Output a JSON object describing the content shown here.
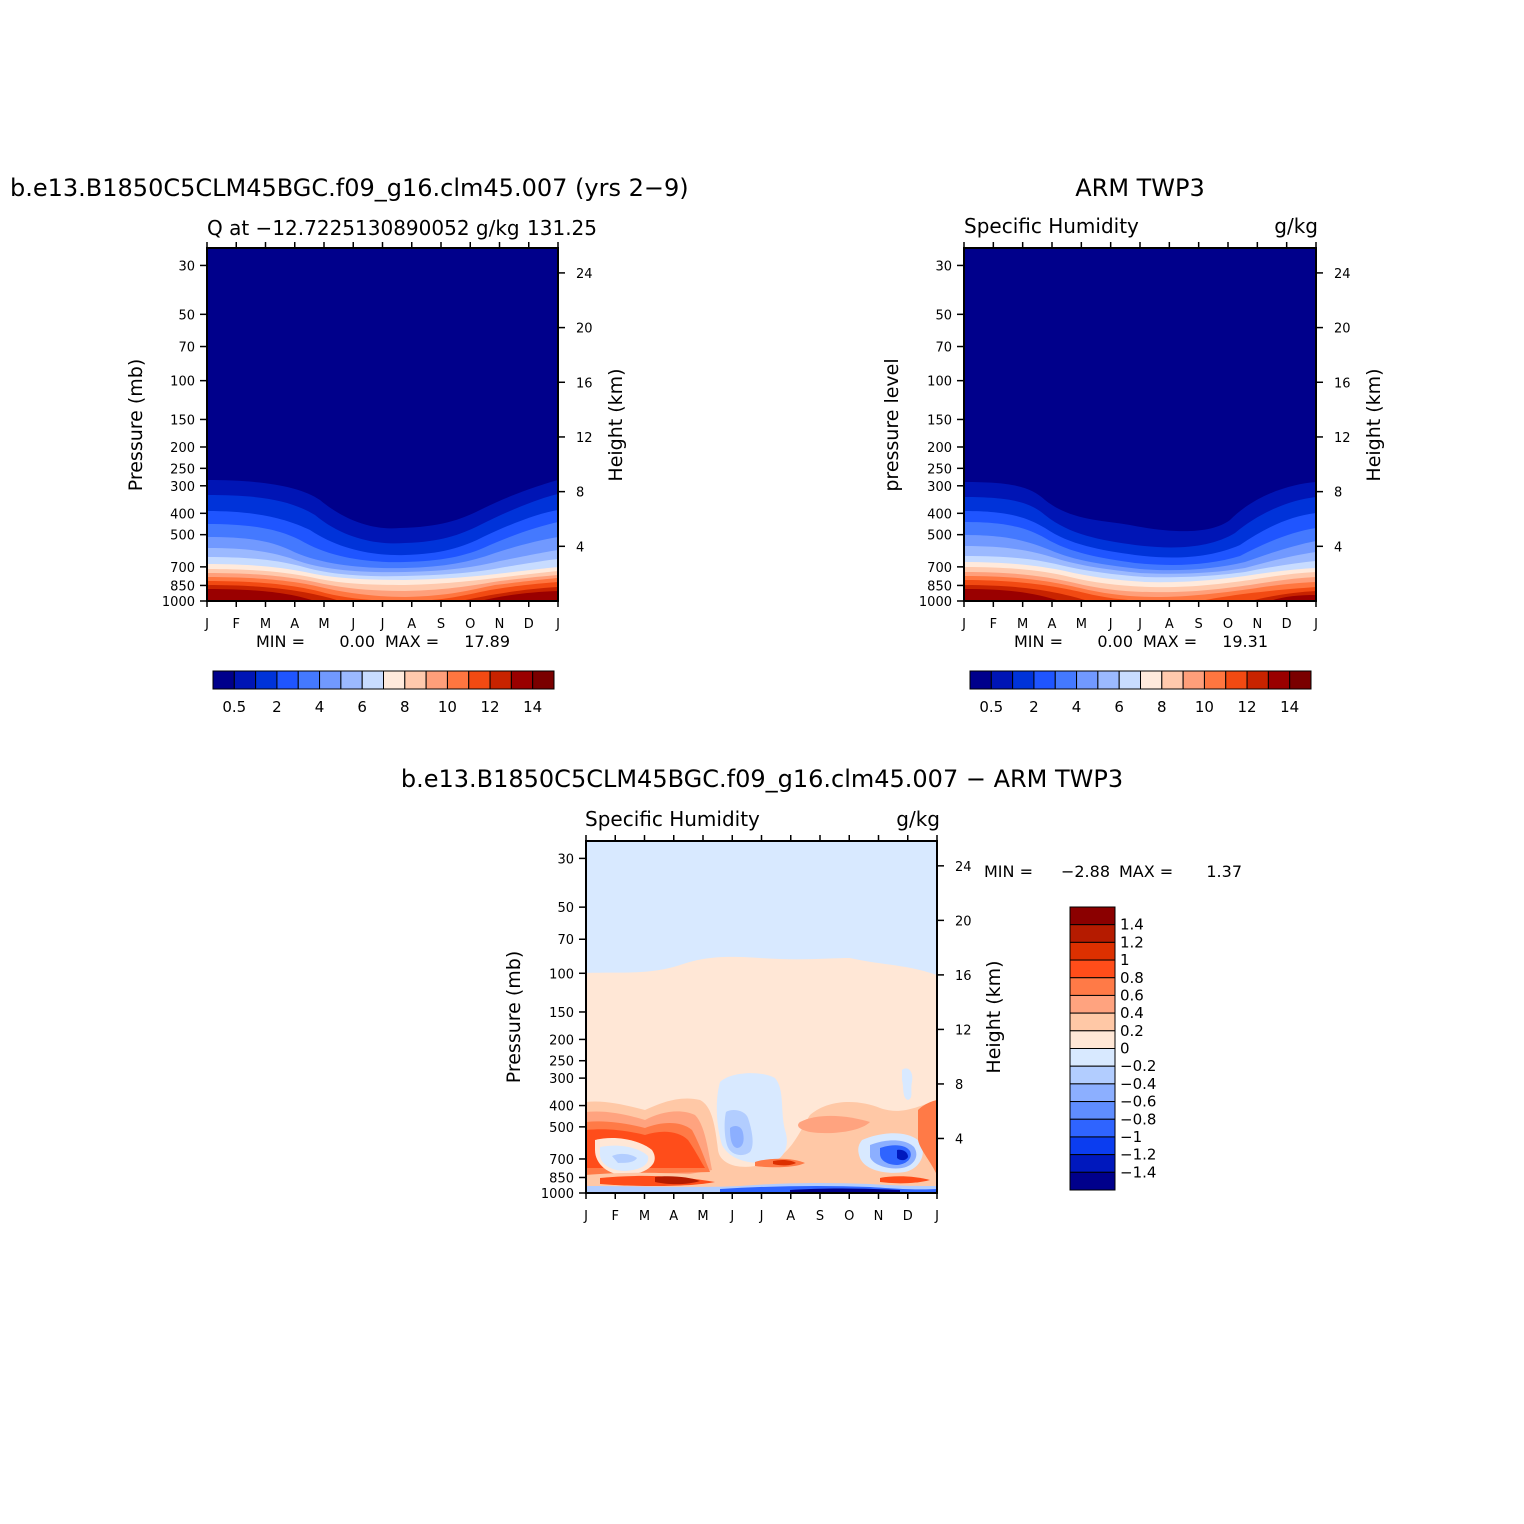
{
  "chart_data": [
    {
      "type": "contour",
      "title": "b.e13.B1850C5CLM45BGC.f09_g16.clm45.007 (yrs 2−9)",
      "left_string": "Q at −12.7225130890052 g/kg",
      "right_string": "131.25",
      "ylabel": "Pressure (mb)",
      "ylabel_right": "Height (km)",
      "x_ticks": [
        "J",
        "F",
        "M",
        "A",
        "M",
        "J",
        "J",
        "A",
        "S",
        "O",
        "N",
        "D",
        "J"
      ],
      "pressure_ticks": [
        30,
        50,
        70,
        100,
        150,
        200,
        250,
        300,
        400,
        500,
        700,
        850,
        1000
      ],
      "pressure_tick_labels": [
        "30",
        "50",
        "70",
        "100",
        "150",
        "200",
        "250",
        "300",
        "400",
        "500",
        "700",
        "850",
        "1000"
      ],
      "height_ticks": [
        24,
        20,
        16,
        12,
        8,
        4
      ],
      "height_tick_labels": [
        "24",
        "20",
        "16",
        "12",
        "8",
        "4"
      ],
      "stats": {
        "min_label": "MIN =",
        "min": "0.00",
        "max_label": "MAX =",
        "max": "17.89"
      },
      "colorbar_labels": [
        "0.5",
        "2",
        "4",
        "6",
        "8",
        "10",
        "12",
        "14"
      ],
      "colorbar_levels": [
        0.5,
        1,
        2,
        3,
        4,
        5,
        6,
        7,
        8,
        9,
        10,
        11,
        12,
        13,
        14
      ],
      "colorbar_colors": [
        "#00008b",
        "#0015b5",
        "#0033d9",
        "#1f55ff",
        "#4479ff",
        "#7199ff",
        "#9bb9ff",
        "#c8dcff",
        "#ffeadc",
        "#ffc9ad",
        "#ff9f7a",
        "#ff7640",
        "#f24a12",
        "#c82300",
        "#9a0000",
        "#7a0000"
      ]
    },
    {
      "type": "contour",
      "title": "ARM TWP3",
      "left_string": "Specific Humidity",
      "right_string": "g/kg",
      "ylabel": "pressure level",
      "ylabel_right": "Height (km)",
      "x_ticks": [
        "J",
        "F",
        "M",
        "A",
        "M",
        "J",
        "J",
        "A",
        "S",
        "O",
        "N",
        "D",
        "J"
      ],
      "pressure_ticks": [
        30,
        50,
        70,
        100,
        150,
        200,
        250,
        300,
        400,
        500,
        700,
        850,
        1000
      ],
      "pressure_tick_labels": [
        "30",
        "50",
        "70",
        "100",
        "150",
        "200",
        "250",
        "300",
        "400",
        "500",
        "700",
        "850",
        "1000"
      ],
      "height_ticks": [
        24,
        20,
        16,
        12,
        8,
        4
      ],
      "height_tick_labels": [
        "24",
        "20",
        "16",
        "12",
        "8",
        "4"
      ],
      "stats": {
        "min_label": "MIN =",
        "min": "0.00",
        "max_label": "MAX =",
        "max": "19.31"
      },
      "colorbar_labels": [
        "0.5",
        "2",
        "4",
        "6",
        "8",
        "10",
        "12",
        "14"
      ],
      "colorbar_levels": [
        0.5,
        1,
        2,
        3,
        4,
        5,
        6,
        7,
        8,
        9,
        10,
        11,
        12,
        13,
        14
      ],
      "colorbar_colors": [
        "#00008b",
        "#0015b5",
        "#0033d9",
        "#1f55ff",
        "#4479ff",
        "#7199ff",
        "#9bb9ff",
        "#c8dcff",
        "#ffeadc",
        "#ffc9ad",
        "#ff9f7a",
        "#ff7640",
        "#f24a12",
        "#c82300",
        "#9a0000",
        "#7a0000"
      ]
    },
    {
      "type": "contour",
      "title": "b.e13.B1850C5CLM45BGC.f09_g16.clm45.007 − ARM TWP3",
      "left_string": "Specific Humidity",
      "right_string": "g/kg",
      "ylabel": "Pressure (mb)",
      "ylabel_right": "Height (km)",
      "x_ticks": [
        "J",
        "F",
        "M",
        "A",
        "M",
        "J",
        "J",
        "A",
        "S",
        "O",
        "N",
        "D",
        "J"
      ],
      "pressure_ticks": [
        30,
        50,
        70,
        100,
        150,
        200,
        250,
        300,
        400,
        500,
        700,
        850,
        1000
      ],
      "pressure_tick_labels": [
        "30",
        "50",
        "70",
        "100",
        "150",
        "200",
        "250",
        "300",
        "400",
        "500",
        "700",
        "850",
        "1000"
      ],
      "height_ticks": [
        24,
        20,
        16,
        12,
        8,
        4
      ],
      "height_tick_labels": [
        "24",
        "20",
        "16",
        "12",
        "8",
        "4"
      ],
      "stats": {
        "min_label": "MIN =",
        "min": "−2.88",
        "max_label": "MAX =",
        "max": "1.37"
      },
      "colorbar_labels": [
        "1.4",
        "1.2",
        "1",
        "0.8",
        "0.6",
        "0.4",
        "0.2",
        "0",
        "−0.2",
        "−0.4",
        "−0.6",
        "−0.8",
        "−1",
        "−1.2",
        "−1.4"
      ],
      "colorbar_levels": [
        1.4,
        1.2,
        1,
        0.8,
        0.6,
        0.4,
        0.2,
        0,
        -0.2,
        -0.4,
        -0.6,
        -0.8,
        -1,
        -1.2,
        -1.4
      ],
      "colorbar_colors": [
        "#8b0000",
        "#b51b00",
        "#dc3000",
        "#ff4d1a",
        "#ff7a47",
        "#ffa37f",
        "#ffc8a6",
        "#ffe7d6",
        "#d8e9ff",
        "#b2cdff",
        "#8cafff",
        "#5f8dff",
        "#2f64ff",
        "#0b3df0",
        "#0018bd",
        "#00008b"
      ]
    }
  ],
  "colors": {
    "deep_navy": "#00008b",
    "diff_bg_upper": "#d8e9ff",
    "diff_bg_lower": "#ffe7d6"
  }
}
